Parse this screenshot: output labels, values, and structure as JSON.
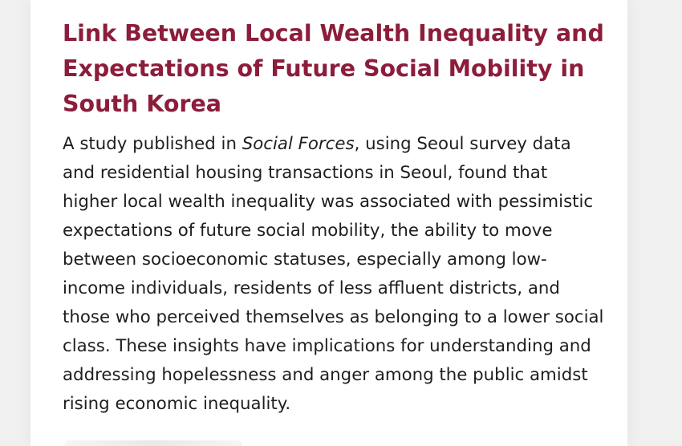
{
  "article": {
    "title": "Link Between Local Wealth Inequality and Expectations of Future Social Mobility in South Korea",
    "summary_prefix": "A study published in ",
    "journal": "Social Forces",
    "summary_rest": ", using Seoul survey data and residential housing transactions in Seoul, found that higher local wealth inequality was associated with pessimistic expectations of future social mobility, the ability to move between socioeconomic statuses, especially among low-income individuals, residents of less affluent districts, and those who perceived themselves as belonging to a lower social class. These insights have implications for understanding and addressing hopelessness and anger among the public amidst rising economic inequality."
  },
  "colors": {
    "title": "#8c1d3b",
    "body_text": "#1e1e1e",
    "card_background": "#ffffff",
    "page_background": "#f0f0f0"
  }
}
